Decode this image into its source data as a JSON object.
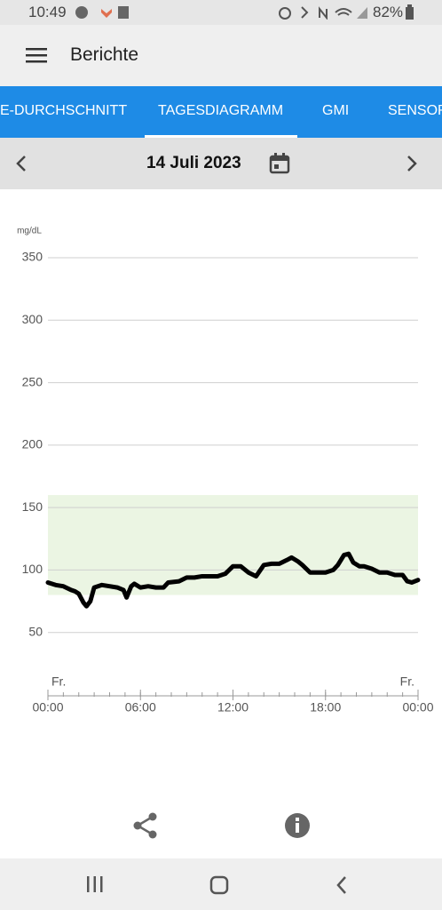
{
  "status_bar": {
    "time": "10:49",
    "battery": "82%"
  },
  "app_bar": {
    "title": "Berichte"
  },
  "tabs": [
    "E-DURCHSCHNITT",
    "TAGESDIAGRAMM",
    "GMI",
    "SENSOR"
  ],
  "selected_tab": 1,
  "date_bar": {
    "date": "14 Juli 2023"
  },
  "chart_data": {
    "type": "line",
    "y_axis_label": "mg/dL",
    "x": [
      0,
      0.5,
      1,
      1.5,
      1.75,
      2,
      2.3,
      2.5,
      2.75,
      3,
      3.5,
      4,
      4.5,
      4.9,
      5.1,
      5.4,
      5.6,
      6,
      6.5,
      7,
      7.5,
      7.8,
      8.5,
      9,
      9.5,
      10,
      10.5,
      11,
      11.5,
      12,
      12.5,
      13,
      13.5,
      14,
      14.5,
      15,
      15.5,
      15.8,
      16.2,
      16.5,
      17,
      17.5,
      18,
      18.5,
      18.8,
      19.2,
      19.5,
      19.8,
      20.2,
      20.5,
      21,
      21.5,
      22,
      22.5,
      23,
      23.3,
      23.6,
      24
    ],
    "series": [
      {
        "color": "#000000",
        "values": [
          90,
          88,
          87,
          84,
          83,
          81,
          74,
          71,
          75,
          86,
          88,
          87,
          86,
          84,
          78,
          87,
          89,
          86,
          87,
          86,
          86,
          90,
          91,
          94,
          94,
          95,
          95,
          95,
          97,
          103,
          103,
          98,
          95,
          104,
          105,
          105,
          108,
          110,
          107,
          104,
          98,
          98,
          98,
          100,
          104,
          112,
          113,
          106,
          103,
          103,
          101,
          98,
          98,
          96,
          96,
          91,
          90,
          92
        ]
      }
    ],
    "target_range": [
      80,
      160
    ],
    "target_color": "#ebf5e3",
    "xlim": [
      0,
      24
    ],
    "ylim": [
      0,
      350
    ],
    "xticks": [
      {
        "value": 0,
        "label": "00:00"
      },
      {
        "value": 6,
        "label": "06:00"
      },
      {
        "value": 12,
        "label": "12:00"
      },
      {
        "value": 18,
        "label": "18:00"
      },
      {
        "value": 24,
        "label": "00:00"
      }
    ],
    "x_minor_ticks": [
      0,
      1,
      2,
      3,
      4,
      5,
      6,
      7,
      8,
      9,
      10,
      11,
      12,
      13,
      14,
      15,
      16,
      17,
      18,
      19,
      20,
      21,
      22,
      23,
      24
    ],
    "yticks": [
      50,
      100,
      150,
      200,
      250,
      300,
      350
    ],
    "grid": true,
    "day_labels": [
      {
        "x": 0,
        "label": "Fr."
      },
      {
        "x": 24,
        "label": "Fr."
      }
    ]
  }
}
